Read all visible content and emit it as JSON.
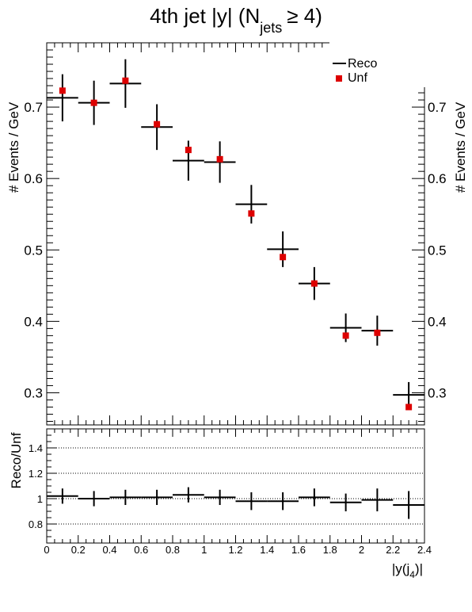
{
  "chart_data": [
    {
      "type": "scatter",
      "title_main": "4th jet |y| (N",
      "title_sub": "jets",
      "title_tail": "≥ 4)",
      "ylabel": "# Events / GeV",
      "ylim": [
        0.255,
        0.79
      ],
      "yticks": [
        0.3,
        0.4,
        0.5,
        0.6,
        0.7
      ],
      "ytick_labels": [
        "0.3",
        "0.4",
        "0.5",
        "0.6",
        "0.7"
      ],
      "xlim": [
        0,
        2.4
      ],
      "grid": false,
      "legend_position": "top-right",
      "series": [
        {
          "name": "Reco",
          "style": "cross",
          "color": "#000000",
          "x": [
            0.1,
            0.3,
            0.5,
            0.7,
            0.9,
            1.1,
            1.3,
            1.5,
            1.7,
            1.9,
            2.1,
            2.3
          ],
          "xerr": 0.1,
          "y": [
            0.713,
            0.706,
            0.733,
            0.672,
            0.625,
            0.623,
            0.564,
            0.501,
            0.453,
            0.391,
            0.387,
            0.297
          ],
          "yerr": [
            0.033,
            0.031,
            0.034,
            0.032,
            0.028,
            0.029,
            0.027,
            0.025,
            0.023,
            0.02,
            0.021,
            0.018
          ]
        },
        {
          "name": "Unf",
          "style": "square",
          "color": "#dd0000",
          "x": [
            0.1,
            0.3,
            0.5,
            0.7,
            0.9,
            1.1,
            1.3,
            1.5,
            1.7,
            1.9,
            2.1,
            2.3
          ],
          "y": [
            0.723,
            0.706,
            0.737,
            0.676,
            0.64,
            0.627,
            0.551,
            0.49,
            0.453,
            0.38,
            0.384,
            0.28
          ]
        }
      ]
    },
    {
      "type": "scatter",
      "ylabel": "Reco/Unf",
      "ylim": [
        0.65,
        1.55
      ],
      "yticks": [
        0.8,
        1.0,
        1.2,
        1.4
      ],
      "ytick_labels": [
        "0.8",
        "1",
        "1.2",
        "1.4"
      ],
      "reference_lines": [
        0.8,
        1.0,
        1.2,
        1.4
      ],
      "xlim": [
        0,
        2.4
      ],
      "xticks": [
        0,
        0.2,
        0.4,
        0.6,
        0.8,
        1.0,
        1.2,
        1.4,
        1.6,
        1.8,
        2.0,
        2.2,
        2.4
      ],
      "xtick_labels": [
        "0",
        "0.2",
        "0.4",
        "0.6",
        "0.8",
        "1",
        "1.2",
        "1.4",
        "1.6",
        "1.8",
        "2",
        "2.2",
        "2.4"
      ],
      "xlabel_main": "|y(j",
      "xlabel_sub": "4",
      "xlabel_tail": ")|",
      "series": [
        {
          "name": "",
          "style": "cross",
          "color": "#000000",
          "x": [
            0.1,
            0.3,
            0.5,
            0.7,
            0.9,
            1.1,
            1.3,
            1.5,
            1.7,
            1.9,
            2.1,
            2.3
          ],
          "xerr": 0.1,
          "y": [
            1.02,
            1.0,
            1.01,
            1.01,
            1.03,
            1.01,
            0.98,
            0.98,
            1.01,
            0.97,
            0.99,
            0.95
          ],
          "yerr": [
            0.06,
            0.06,
            0.06,
            0.06,
            0.06,
            0.06,
            0.07,
            0.07,
            0.07,
            0.07,
            0.09,
            0.11
          ]
        }
      ]
    }
  ]
}
